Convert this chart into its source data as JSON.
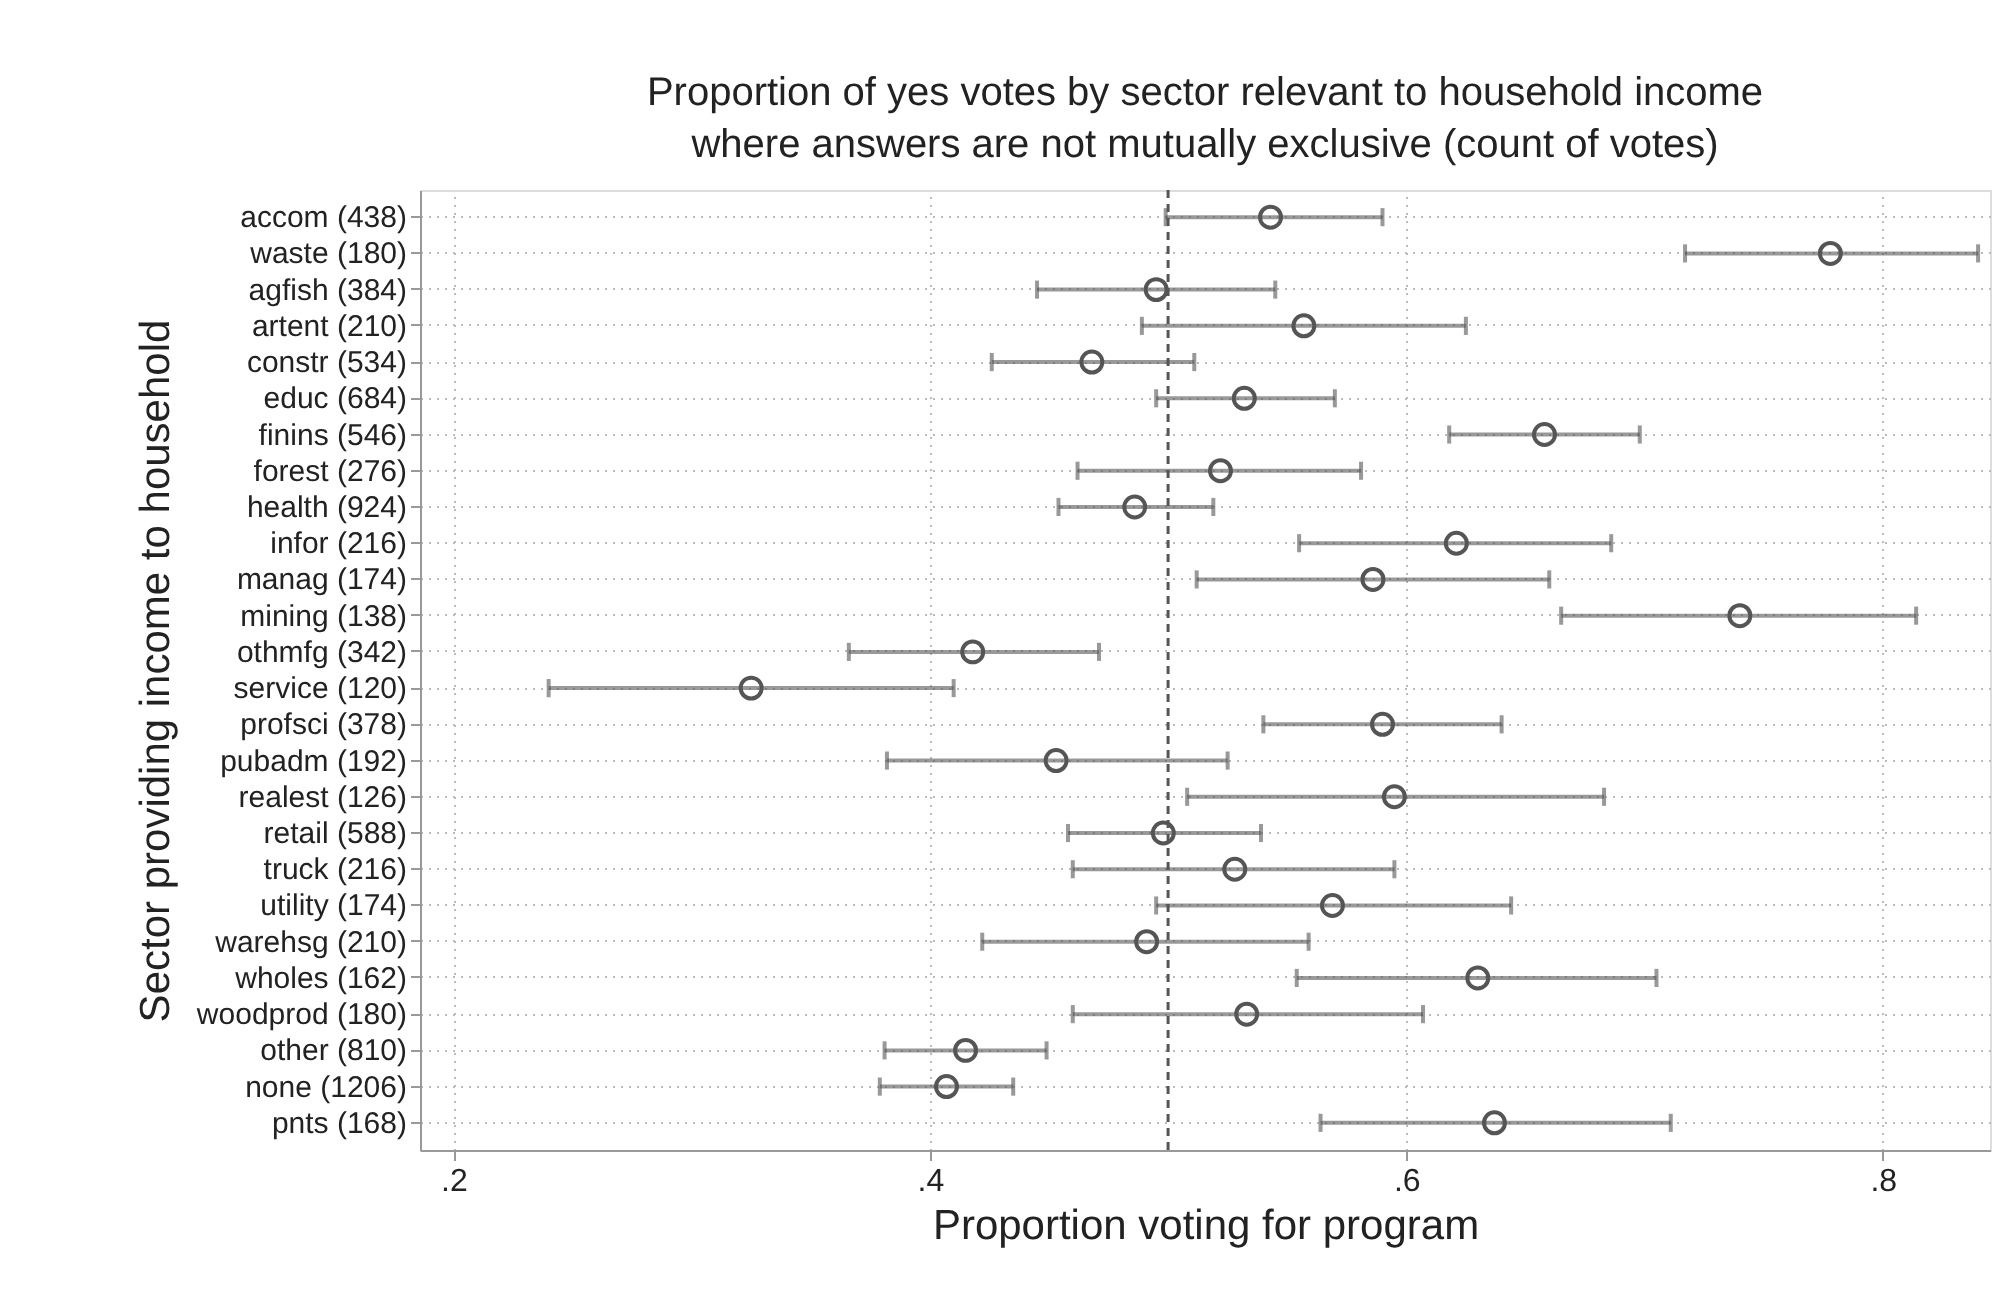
{
  "chart_data": {
    "type": "scatter",
    "orientation": "horizontal",
    "title": "Proportion of yes votes by sector relevant to household income\nwhere answers are not mutually exclusive (count of votes)",
    "xlabel": "Proportion voting for program",
    "ylabel": "Sector providing income to household",
    "categories": [
      "accom (438)",
      "waste (180)",
      "agfish (384)",
      "artent (210)",
      "constr (534)",
      "educ (684)",
      "finins (546)",
      "forest (276)",
      "health (924)",
      "infor (216)",
      "manag (174)",
      "mining (138)",
      "othmfg (342)",
      "service (120)",
      "profsci (378)",
      "pubadm (192)",
      "realest (126)",
      "retail (588)",
      "truck (216)",
      "utility (174)",
      "warehsg (210)",
      "wholes (162)",
      "woodprod (180)",
      "other (810)",
      "none (1206)",
      "pnts (168)"
    ],
    "series": [
      {
        "color": "#555555",
        "values": [
          0.543,
          0.778,
          0.495,
          0.557,
          0.468,
          0.532,
          0.658,
          0.522,
          0.486,
          0.621,
          0.586,
          0.74,
          0.418,
          0.325,
          0.59,
          0.453,
          0.595,
          0.498,
          0.528,
          0.569,
          0.491,
          0.63,
          0.533,
          0.415,
          0.407,
          0.637
        ],
        "errors": [
          [
            0.499,
            0.59
          ],
          [
            0.717,
            0.84
          ],
          [
            0.445,
            0.545
          ],
          [
            0.489,
            0.625
          ],
          [
            0.426,
            0.511
          ],
          [
            0.495,
            0.57
          ],
          [
            0.618,
            0.698
          ],
          [
            0.462,
            0.581
          ],
          [
            0.454,
            0.519
          ],
          [
            0.555,
            0.686
          ],
          [
            0.512,
            0.66
          ],
          [
            0.665,
            0.814
          ],
          [
            0.366,
            0.471
          ],
          [
            0.24,
            0.41
          ],
          [
            0.54,
            0.64
          ],
          [
            0.382,
            0.525
          ],
          [
            0.508,
            0.683
          ],
          [
            0.458,
            0.539
          ],
          [
            0.46,
            0.595
          ],
          [
            0.495,
            0.644
          ],
          [
            0.422,
            0.559
          ],
          [
            0.554,
            0.705
          ],
          [
            0.46,
            0.607
          ],
          [
            0.381,
            0.449
          ],
          [
            0.379,
            0.435
          ],
          [
            0.564,
            0.711
          ]
        ]
      }
    ],
    "xlim": [
      0.186,
      0.845
    ],
    "xticks": [
      {
        "value": 0.2,
        "label": ".2"
      },
      {
        "value": 0.4,
        "label": ".4"
      },
      {
        "value": 0.6,
        "label": ".6"
      },
      {
        "value": 0.8,
        "label": ".8"
      }
    ],
    "ref_lines": [
      {
        "axis": "x",
        "value": 0.5,
        "color": "#555555",
        "line_style": "dashed"
      }
    ],
    "grid": true,
    "marker": "circle"
  }
}
